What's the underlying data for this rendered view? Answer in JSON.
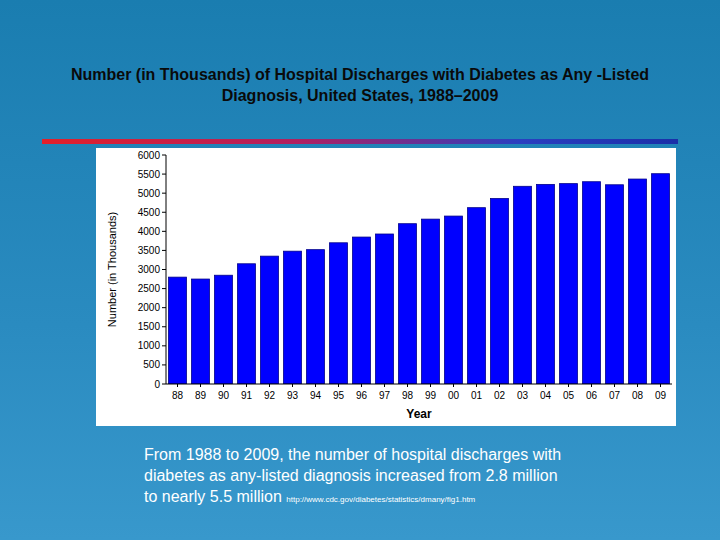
{
  "chart_data": {
    "type": "bar",
    "title": "Number (in Thousands) of Hospital Discharges with Diabetes as Any -Listed Diagnosis, United States, 1988–2009",
    "y_label": "Number (in Thousands)",
    "x_label": "Year",
    "categories": [
      "88",
      "89",
      "90",
      "91",
      "92",
      "93",
      "94",
      "95",
      "96",
      "97",
      "98",
      "99",
      "00",
      "01",
      "02",
      "03",
      "04",
      "05",
      "06",
      "07",
      "08",
      "09"
    ],
    "values": [
      2800,
      2750,
      2850,
      3150,
      3350,
      3480,
      3520,
      3700,
      3850,
      3930,
      4200,
      4320,
      4400,
      4620,
      4860,
      5180,
      5230,
      5250,
      5300,
      5220,
      5370,
      5510
    ],
    "color": "#0000ff",
    "ylim": [
      0,
      6000
    ],
    "yticks": [
      0,
      500,
      1000,
      1500,
      2000,
      2500,
      3000,
      3500,
      4000,
      4500,
      5000,
      5500,
      6000
    ],
    "grid": false,
    "caption": "From 1988 to 2009, the number of hospital discharges with diabetes as any-listed diagnosis increased from 2.8 million to nearly 5.5 million",
    "source": "http://www.cdc.gov/diabetes/statistics/dmany/fig1.htm"
  }
}
